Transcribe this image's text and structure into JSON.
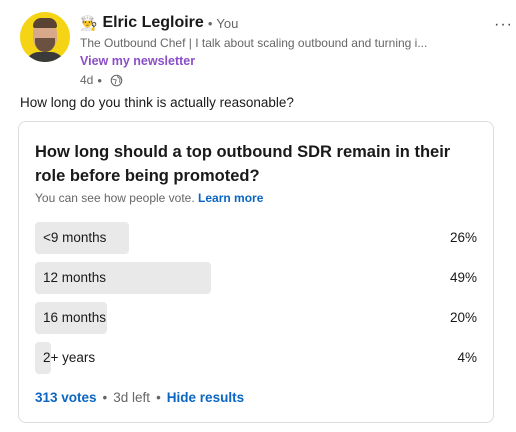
{
  "author": {
    "icon": "chef-hat-icon",
    "name": "Elric Legloire",
    "relation": "You",
    "headline": "The Outbound Chef | I talk about scaling outbound and turning i...",
    "newsletter_link": "View my newsletter",
    "time": "4d"
  },
  "post": {
    "text": "How long do you think is actually reasonable?"
  },
  "poll": {
    "question": "How long should a top outbound SDR remain in their role before being promoted?",
    "note": "You can see how people vote.",
    "learn_more": "Learn more",
    "options": [
      {
        "label": "<9 months",
        "percent_text": "26%",
        "percent": 26
      },
      {
        "label": "12 months",
        "percent_text": "49%",
        "percent": 49
      },
      {
        "label": "16 months",
        "percent_text": "20%",
        "percent": 20
      },
      {
        "label": "2+ years",
        "percent_text": "4%",
        "percent": 4
      }
    ],
    "votes": "313 votes",
    "time_left": "3d left",
    "hide_results": "Hide results"
  },
  "colors": {
    "link_blue": "#0a66c2",
    "newsletter_purple": "#8a4fc7",
    "bar_gray": "#e9e9e9"
  }
}
